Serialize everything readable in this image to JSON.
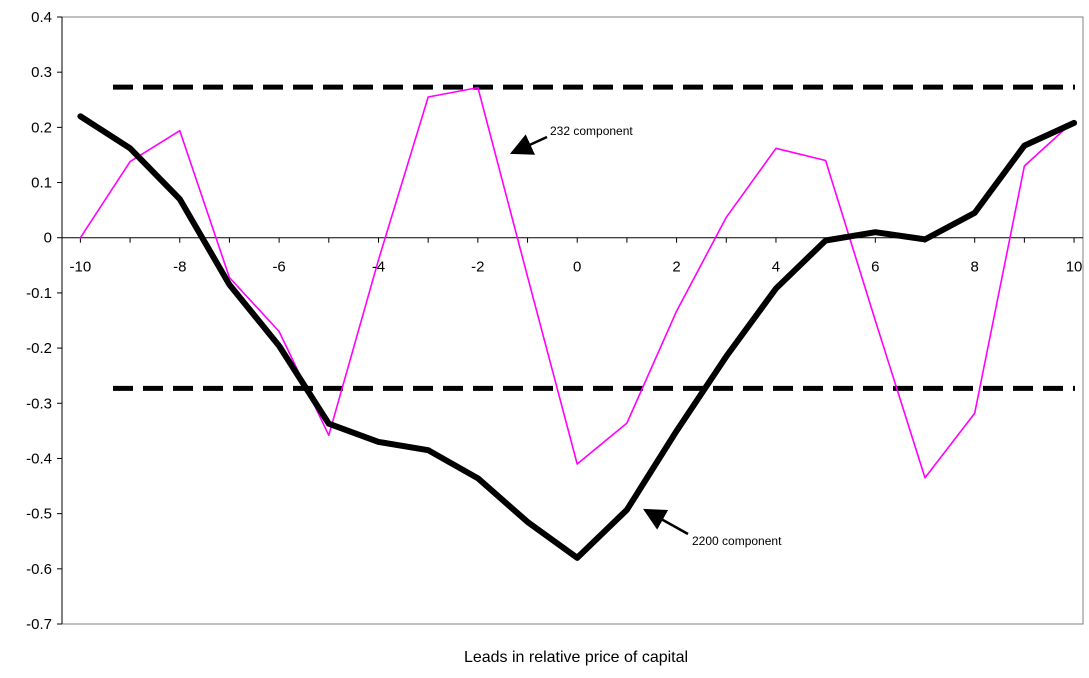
{
  "chart_data": {
    "type": "line",
    "title": "",
    "xlabel": "Leads in relative price of capital",
    "ylabel": "",
    "x": [
      -10,
      -9,
      -8,
      -7,
      -6,
      -5,
      -4,
      -3,
      -2,
      -1,
      0,
      1,
      2,
      3,
      4,
      5,
      6,
      7,
      8,
      9,
      10
    ],
    "x_ticks": [
      -10,
      -8,
      -6,
      -4,
      -2,
      0,
      2,
      4,
      6,
      8,
      10
    ],
    "y_ticks": [
      0.4,
      0.3,
      0.2,
      0.1,
      0,
      -0.1,
      -0.2,
      -0.3,
      -0.4,
      -0.5,
      -0.6,
      -0.7
    ],
    "xlim": [
      -10.37,
      10.18
    ],
    "ylim": [
      -0.7,
      0.4
    ],
    "grid": false,
    "series": [
      {
        "name": "2200 component",
        "color": "#000000",
        "style": "thick",
        "values": [
          0.22,
          0.162,
          0.07,
          -0.085,
          -0.196,
          -0.337,
          -0.37,
          -0.385,
          -0.436,
          -0.515,
          -0.58,
          -0.493,
          -0.35,
          -0.215,
          -0.092,
          -0.005,
          0.01,
          -0.003,
          0.045,
          0.167,
          0.208
        ]
      },
      {
        "name": "232 component",
        "color": "#ff00ff",
        "style": "thin",
        "values": [
          0.0,
          0.138,
          0.194,
          -0.072,
          -0.17,
          -0.358,
          -0.04,
          0.255,
          0.272,
          -0.07,
          -0.41,
          -0.336,
          -0.133,
          0.037,
          0.162,
          0.14,
          -0.15,
          -0.435,
          -0.318,
          0.13,
          0.212
        ]
      }
    ],
    "reference_lines": [
      {
        "y": 0.273,
        "style": "dashed",
        "color": "#000000"
      },
      {
        "y": -0.273,
        "style": "dashed",
        "color": "#000000"
      }
    ],
    "annotations": [
      {
        "text": "232 component",
        "points_to_series": "232 component"
      },
      {
        "text": "2200 component",
        "points_to_series": "2200 component"
      }
    ]
  }
}
